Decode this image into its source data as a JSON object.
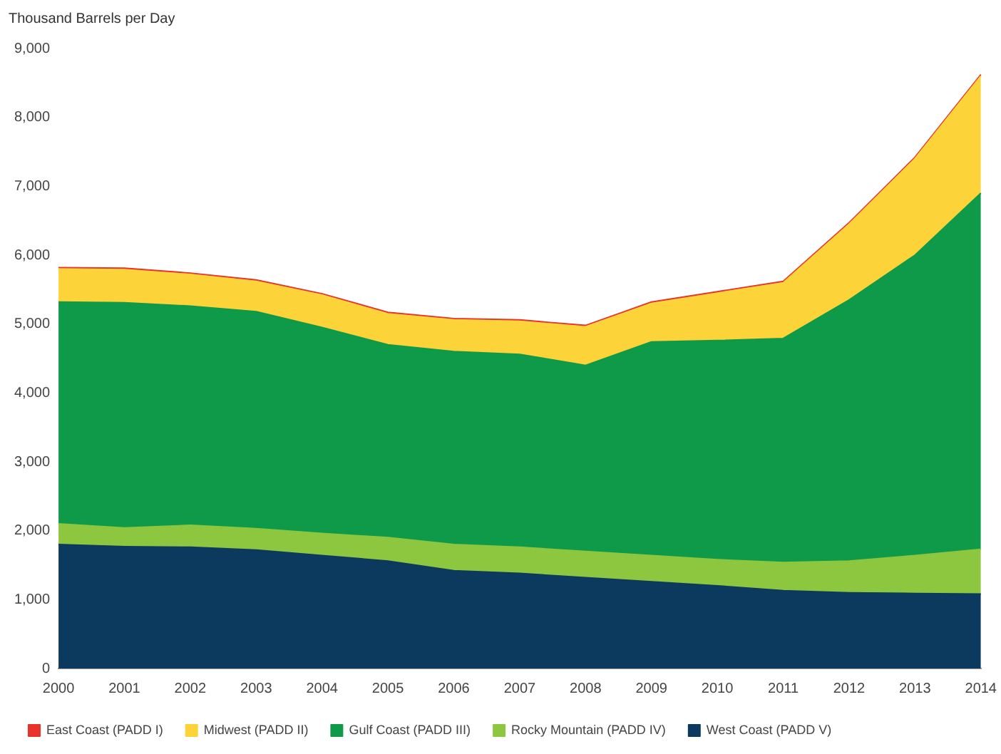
{
  "chart_data": {
    "type": "area",
    "ylabel": "Thousand Barrels per Day",
    "stacked": true,
    "legend": "bottom",
    "grid": false,
    "categories": [
      "2000",
      "2001",
      "2002",
      "2003",
      "2004",
      "2005",
      "2006",
      "2007",
      "2008",
      "2009",
      "2010",
      "2011",
      "2012",
      "2013",
      "2014"
    ],
    "ylim": [
      0,
      9000
    ],
    "yticks": [
      {
        "value": 0,
        "label": "0"
      },
      {
        "value": 1000,
        "label": "1,000"
      },
      {
        "value": 2000,
        "label": "2,000"
      },
      {
        "value": 3000,
        "label": "3,000"
      },
      {
        "value": 4000,
        "label": "4,000"
      },
      {
        "value": 5000,
        "label": "5,000"
      },
      {
        "value": 6000,
        "label": "6,000"
      },
      {
        "value": 7000,
        "label": "7,000"
      },
      {
        "value": 8000,
        "label": "8,000"
      },
      {
        "value": 9000,
        "label": "9,000"
      }
    ],
    "series": [
      {
        "name": "West Coast (PADD V)",
        "color": "#0b3a5e",
        "values": [
          1800,
          1770,
          1760,
          1720,
          1640,
          1560,
          1420,
          1380,
          1320,
          1260,
          1200,
          1130,
          1100,
          1090,
          1080
        ]
      },
      {
        "name": "Rocky Mountain (PADD IV)",
        "color": "#8dc63f",
        "values": [
          300,
          270,
          320,
          310,
          320,
          340,
          380,
          380,
          380,
          380,
          380,
          410,
          460,
          550,
          650
        ]
      },
      {
        "name": "Gulf Coast (PADD III)",
        "color": "#0e9a48",
        "values": [
          3220,
          3270,
          3180,
          3150,
          2990,
          2800,
          2800,
          2800,
          2700,
          3100,
          3180,
          3250,
          3790,
          4360,
          5170
        ]
      },
      {
        "name": "Midwest (PADD II)",
        "color": "#fdd33a",
        "values": [
          480,
          480,
          460,
          440,
          470,
          450,
          460,
          480,
          560,
          560,
          690,
          810,
          1100,
          1400,
          1700
        ]
      },
      {
        "name": "East Coast (PADD I)",
        "color": "#e8322b",
        "values": [
          20,
          20,
          20,
          20,
          20,
          20,
          20,
          20,
          20,
          20,
          20,
          20,
          20,
          20,
          20
        ]
      }
    ]
  }
}
